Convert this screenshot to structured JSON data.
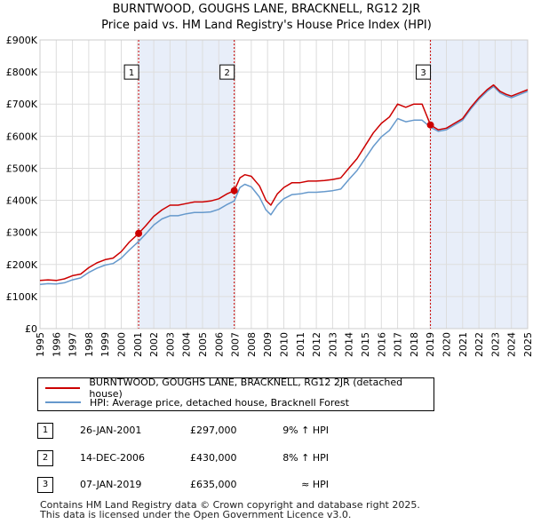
{
  "header": {
    "title": "BURNTWOOD, GOUGHS LANE, BRACKNELL, RG12 2JR",
    "subtitle": "Price paid vs. HM Land Registry's House Price Index (HPI)"
  },
  "colors": {
    "property": "#cc0000",
    "hpi": "#6699cc",
    "shade": "#e8eef9",
    "marker_line": "#cc0000",
    "grid": "#dddddd"
  },
  "chart_data": {
    "type": "line",
    "title": "Price paid vs. HM Land Registry's House Price Index (HPI)",
    "xlim": [
      1995,
      2025
    ],
    "ylim": [
      0,
      900000
    ],
    "xticks": [
      1995,
      1996,
      1997,
      1998,
      1999,
      2000,
      2001,
      2002,
      2003,
      2004,
      2005,
      2006,
      2007,
      2008,
      2009,
      2010,
      2011,
      2012,
      2013,
      2014,
      2015,
      2016,
      2017,
      2018,
      2019,
      2020,
      2021,
      2022,
      2023,
      2024,
      2025
    ],
    "xtick_labels": [
      "1995",
      "1996",
      "1997",
      "1998",
      "1999",
      "2000",
      "2001",
      "2002",
      "2003",
      "2004",
      "2005",
      "2006",
      "2007",
      "2008",
      "2009",
      "2010",
      "2011",
      "2012",
      "2013",
      "2014",
      "2015",
      "2016",
      "2017",
      "2018",
      "2019",
      "2020",
      "2021",
      "2022",
      "2023",
      "2024",
      "2025"
    ],
    "yticks": [
      0,
      100000,
      200000,
      300000,
      400000,
      500000,
      600000,
      700000,
      800000,
      900000
    ],
    "ytick_labels": [
      "£0",
      "£100K",
      "£200K",
      "£300K",
      "£400K",
      "£500K",
      "£600K",
      "£700K",
      "£800K",
      "£900K"
    ],
    "grid": true,
    "series": [
      {
        "name": "BURNTWOOD, GOUGHS LANE, BRACKNELL, RG12 2JR (detached house)",
        "color": "#cc0000",
        "x": [
          1995.0,
          1995.5,
          1996.0,
          1996.5,
          1997.0,
          1997.5,
          1998.0,
          1998.5,
          1999.0,
          1999.5,
          2000.0,
          2000.5,
          2001.07,
          2001.5,
          2002.0,
          2002.5,
          2003.0,
          2003.5,
          2004.0,
          2004.5,
          2005.0,
          2005.5,
          2006.0,
          2006.5,
          2006.95,
          2007.3,
          2007.6,
          2008.0,
          2008.5,
          2008.9,
          2009.2,
          2009.6,
          2010.0,
          2010.5,
          2011.0,
          2011.5,
          2012.0,
          2012.5,
          2013.0,
          2013.5,
          2014.0,
          2014.5,
          2015.0,
          2015.5,
          2016.0,
          2016.5,
          2017.0,
          2017.5,
          2018.0,
          2018.5,
          2019.02,
          2019.5,
          2020.0,
          2020.5,
          2021.0,
          2021.5,
          2022.0,
          2022.5,
          2022.9,
          2023.3,
          2023.7,
          2024.0,
          2024.5,
          2025.0
        ],
        "values": [
          150000,
          152000,
          150000,
          155000,
          165000,
          170000,
          190000,
          205000,
          215000,
          220000,
          240000,
          270000,
          297000,
          320000,
          350000,
          370000,
          385000,
          385000,
          390000,
          395000,
          395000,
          398000,
          405000,
          420000,
          430000,
          470000,
          480000,
          475000,
          445000,
          400000,
          385000,
          420000,
          440000,
          455000,
          455000,
          460000,
          460000,
          462000,
          465000,
          470000,
          500000,
          530000,
          570000,
          610000,
          640000,
          660000,
          700000,
          690000,
          700000,
          700000,
          635000,
          620000,
          625000,
          640000,
          655000,
          690000,
          720000,
          745000,
          760000,
          740000,
          730000,
          725000,
          735000,
          745000
        ]
      },
      {
        "name": "HPI: Average price, detached house, Bracknell Forest",
        "color": "#6699cc",
        "x": [
          1995.0,
          1995.5,
          1996.0,
          1996.5,
          1997.0,
          1997.5,
          1998.0,
          1998.5,
          1999.0,
          1999.5,
          2000.0,
          2000.5,
          2001.07,
          2001.5,
          2002.0,
          2002.5,
          2003.0,
          2003.5,
          2004.0,
          2004.5,
          2005.0,
          2005.5,
          2006.0,
          2006.5,
          2006.95,
          2007.3,
          2007.6,
          2008.0,
          2008.5,
          2008.9,
          2009.2,
          2009.6,
          2010.0,
          2010.5,
          2011.0,
          2011.5,
          2012.0,
          2012.5,
          2013.0,
          2013.5,
          2014.0,
          2014.5,
          2015.0,
          2015.5,
          2016.0,
          2016.5,
          2017.0,
          2017.5,
          2018.0,
          2018.5,
          2019.02,
          2019.5,
          2020.0,
          2020.5,
          2021.0,
          2021.5,
          2022.0,
          2022.5,
          2022.9,
          2023.3,
          2023.7,
          2024.0,
          2024.5,
          2025.0
        ],
        "values": [
          138000,
          140000,
          139000,
          143000,
          152000,
          158000,
          175000,
          188000,
          198000,
          203000,
          220000,
          245000,
          272000,
          295000,
          323000,
          342000,
          352000,
          352000,
          358000,
          362000,
          362000,
          364000,
          372000,
          387000,
          398000,
          440000,
          450000,
          442000,
          410000,
          370000,
          355000,
          385000,
          405000,
          418000,
          420000,
          425000,
          425000,
          427000,
          430000,
          435000,
          465000,
          493000,
          530000,
          568000,
          598000,
          618000,
          655000,
          645000,
          650000,
          650000,
          628000,
          615000,
          620000,
          635000,
          650000,
          685000,
          715000,
          740000,
          755000,
          735000,
          725000,
          720000,
          730000,
          740000
        ]
      }
    ],
    "sales": [
      {
        "num": "1",
        "x": 2001.07,
        "value": 297000
      },
      {
        "num": "2",
        "x": 2006.95,
        "value": 430000
      },
      {
        "num": "3",
        "x": 2019.02,
        "value": 635000
      }
    ],
    "marker_label_value": 800000
  },
  "legend": {
    "property_label": "BURNTWOOD, GOUGHS LANE, BRACKNELL, RG12 2JR (detached house)",
    "hpi_label": "HPI: Average price, detached house, Bracknell Forest"
  },
  "sales_table": [
    {
      "num": "1",
      "date": "26-JAN-2001",
      "price": "£297,000",
      "hpi": "9% ↑ HPI"
    },
    {
      "num": "2",
      "date": "14-DEC-2006",
      "price": "£430,000",
      "hpi": "8% ↑ HPI"
    },
    {
      "num": "3",
      "date": "07-JAN-2019",
      "price": "£635,000",
      "hpi": "≈ HPI"
    }
  ],
  "footer": {
    "line1": "Contains HM Land Registry data © Crown copyright and database right 2025.",
    "line2": "This data is licensed under the Open Government Licence v3.0."
  }
}
